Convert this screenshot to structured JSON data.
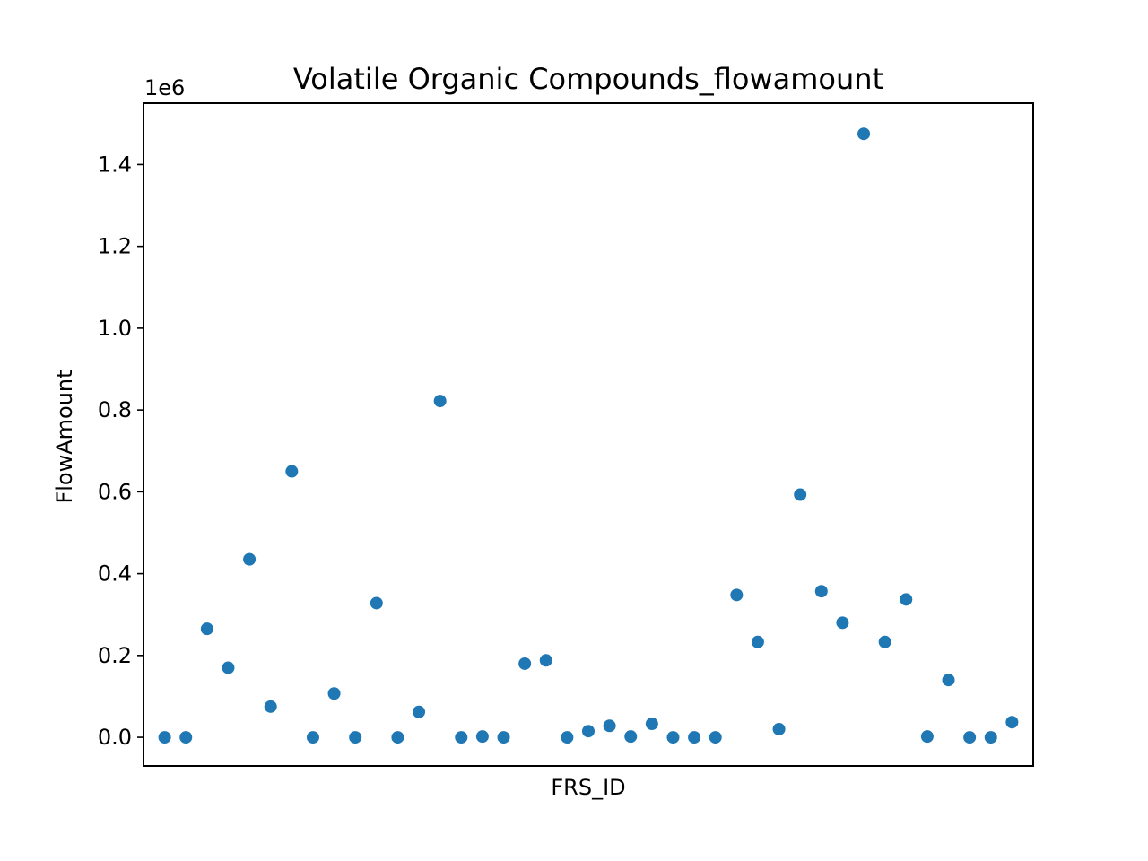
{
  "chart_data": {
    "type": "scatter",
    "title": "Volatile Organic Compounds_flowamount",
    "xlabel": "FRS_ID",
    "ylabel": "FlowAmount",
    "y_offset_label": "1e6",
    "y_scale": 1000000,
    "ylim": [
      -70000,
      1550000
    ],
    "xlim": [
      -1,
      41
    ],
    "grid": false,
    "legend": "none",
    "marker_color": "#1f77b4",
    "y_ticks": [
      {
        "value": 0,
        "label": "0.0"
      },
      {
        "value": 200000,
        "label": "0.2"
      },
      {
        "value": 400000,
        "label": "0.4"
      },
      {
        "value": 600000,
        "label": "0.6"
      },
      {
        "value": 800000,
        "label": "0.8"
      },
      {
        "value": 1000000,
        "label": "1.0"
      },
      {
        "value": 1200000,
        "label": "1.2"
      },
      {
        "value": 1400000,
        "label": "1.4"
      }
    ],
    "series": [
      {
        "values": [
          0,
          0,
          265000,
          170000,
          435000,
          75000,
          650000,
          0,
          107000,
          0,
          328000,
          0,
          62000,
          822000,
          0,
          2000,
          0,
          180000,
          188000,
          0,
          15000,
          28000,
          2000,
          33000,
          0,
          0,
          0,
          348000,
          233000,
          20000,
          593000,
          357000,
          280000,
          1475000,
          233000,
          337000,
          2000,
          140000,
          0,
          0,
          37000
        ]
      }
    ]
  }
}
